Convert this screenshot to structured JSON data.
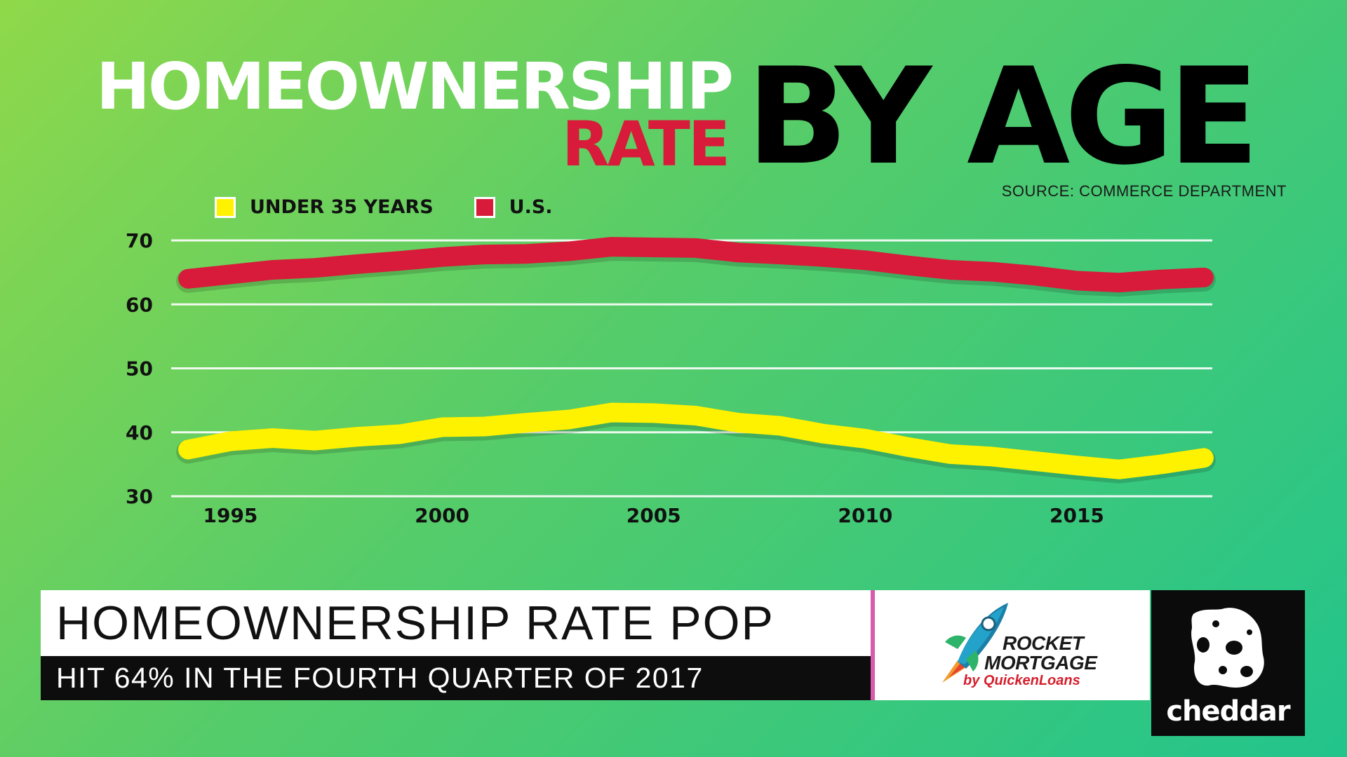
{
  "title": {
    "line1": "HOMEOWNERSHIP",
    "line2": "RATE",
    "emphasis": "BY AGE"
  },
  "source": "SOURCE: COMMERCE DEPARTMENT",
  "colors": {
    "under35": "#fff200",
    "us": "#d81b3a",
    "gridline": "#ffffff",
    "background_start": "#8fd84a",
    "background_end": "#22c48c"
  },
  "chart_data": {
    "type": "line",
    "title": "HOMEOWNERSHIP RATE BY AGE",
    "xlabel": "",
    "ylabel": "",
    "ylim": [
      30,
      70
    ],
    "xlim": [
      1993.6,
      2018.2
    ],
    "yticks": [
      30,
      40,
      50,
      60,
      70
    ],
    "xticks": [
      1995,
      2000,
      2005,
      2010,
      2015
    ],
    "grid": true,
    "legend_position": "top-left",
    "series": [
      {
        "name": "U.S.",
        "color": "#d81b3a",
        "x": [
          1994,
          1995,
          1996,
          1997,
          1998,
          1999,
          2000,
          2001,
          2002,
          2003,
          2004,
          2005,
          2006,
          2007,
          2008,
          2009,
          2010,
          2011,
          2012,
          2013,
          2014,
          2015,
          2016,
          2017,
          2018
        ],
        "y": [
          64.0,
          64.7,
          65.4,
          65.7,
          66.3,
          66.8,
          67.4,
          67.8,
          67.9,
          68.3,
          69.0,
          68.9,
          68.8,
          68.1,
          67.8,
          67.4,
          66.9,
          66.1,
          65.4,
          65.1,
          64.5,
          63.7,
          63.4,
          63.9,
          64.2
        ]
      },
      {
        "name": "UNDER 35 YEARS",
        "color": "#fff200",
        "x": [
          1994,
          1995,
          1996,
          1997,
          1998,
          1999,
          2000,
          2001,
          2002,
          2003,
          2004,
          2005,
          2006,
          2007,
          2008,
          2009,
          2010,
          2011,
          2012,
          2013,
          2014,
          2015,
          2016,
          2017,
          2018
        ],
        "y": [
          37.3,
          38.6,
          39.1,
          38.7,
          39.3,
          39.7,
          40.8,
          40.9,
          41.5,
          42.0,
          43.1,
          43.0,
          42.6,
          41.5,
          41.0,
          39.8,
          39.0,
          37.7,
          36.6,
          36.2,
          35.5,
          34.8,
          34.2,
          35.0,
          36.0
        ]
      }
    ]
  },
  "lower_third": {
    "headline": "HOMEOWNERSHIP RATE POP",
    "subline": "HIT 64% IN THE FOURTH QUARTER OF 2017"
  },
  "sponsor": {
    "line1": "ROCKET",
    "line2": "MORTGAGE",
    "line3": "by QuickenLoans"
  },
  "brand": {
    "name": "cheddar",
    "icon": "cheddar-cheese-icon"
  }
}
